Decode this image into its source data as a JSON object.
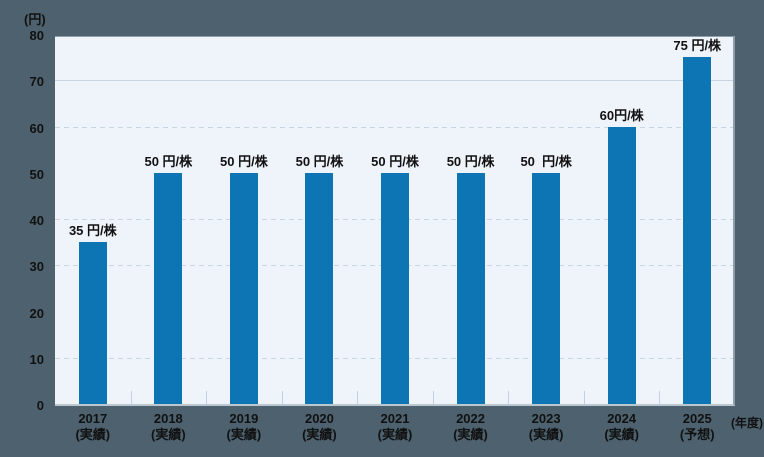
{
  "chart_data": {
    "type": "bar",
    "title": "",
    "y_axis": {
      "unit_label": "(円)",
      "min": 0,
      "max": 80,
      "tick_interval": 10,
      "ticks": [
        0,
        10,
        20,
        30,
        40,
        50,
        60,
        70,
        80
      ]
    },
    "x_axis": {
      "unit_label": "(年度)"
    },
    "bars": [
      {
        "year": "2017",
        "status": "(実績)",
        "value": 35,
        "label": "35 円/株"
      },
      {
        "year": "2018",
        "status": "(実績)",
        "value": 50,
        "label": "50 円/株"
      },
      {
        "year": "2019",
        "status": "(実績)",
        "value": 50,
        "label": "50 円/株"
      },
      {
        "year": "2020",
        "status": "(実績)",
        "value": 50,
        "label": "50 円/株"
      },
      {
        "year": "2021",
        "status": "(実績)",
        "value": 50,
        "label": "50 円/株"
      },
      {
        "year": "2022",
        "status": "(実績)",
        "value": 50,
        "label": "50 円/株"
      },
      {
        "year": "2023",
        "status": "(実績)",
        "value": 50,
        "label": "50  円/株"
      },
      {
        "year": "2024",
        "status": "(実績)",
        "value": 60,
        "label": "60円/株"
      },
      {
        "year": "2025",
        "status": "(予想)",
        "value": 75,
        "label": "75 円/株"
      }
    ],
    "gridlines": {
      "dashed_levels": [
        10,
        30,
        40,
        60
      ],
      "solid_levels": [
        70
      ]
    },
    "legend": null,
    "colors": {
      "bar": "#0e75b4",
      "background": "#4d626e",
      "plot_background": "#eff4fb",
      "gridline": "#c7d6e0",
      "axis_line": "#bac8d2",
      "text": "#111111"
    }
  }
}
